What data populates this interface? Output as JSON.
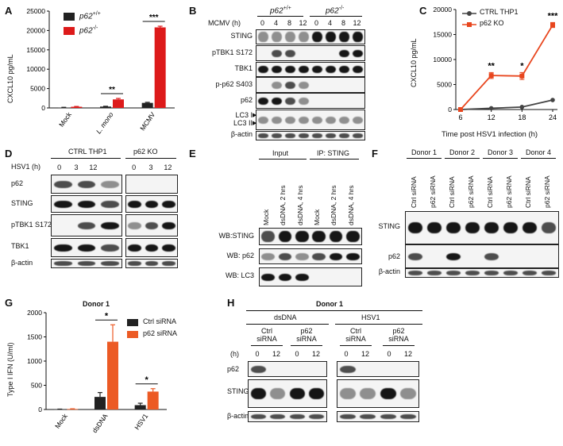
{
  "panels": {
    "A": {
      "letter": "A",
      "ylabel": "CXCL10 pg/mL",
      "legend": [
        {
          "label": "p62",
          "sup": "+/+",
          "color": "#222222"
        },
        {
          "label": "p62",
          "sup": "-/-",
          "color": "#dd1a1a"
        }
      ],
      "sig": [
        "**",
        "***"
      ]
    },
    "B": {
      "letter": "B",
      "geno1": "p62",
      "geno1_sup": "+/+",
      "geno2": "p62",
      "geno2_sup": "-/-",
      "time_label": "MCMV (h)",
      "times": [
        "0",
        "4",
        "8",
        "12",
        "0",
        "4",
        "8",
        "12"
      ],
      "rows": [
        "STING",
        "pTBK1 S172",
        "TBK1",
        "p-p62 S403",
        "p62",
        "LC3 I",
        "LC3 II",
        "β-actin"
      ]
    },
    "C": {
      "letter": "C",
      "legend": [
        "CTRL THP1",
        "p62 KO"
      ],
      "ylabel": "CXCL10 pg/mL",
      "xlabel": "Time post HSV1 infection (h)",
      "sig": [
        "**",
        "*",
        "***"
      ]
    },
    "D": {
      "letter": "D",
      "group1": "CTRL THP1",
      "group2": "p62 KO",
      "time_label": "HSV1 (h)",
      "times": [
        "0",
        "3",
        "12",
        "0",
        "3",
        "12"
      ],
      "rows": [
        "p62",
        "STING",
        "pTBK1 S172",
        "TBK1",
        "β-actin"
      ]
    },
    "E": {
      "letter": "E",
      "group1": "Input",
      "group2": "IP: STING",
      "lanes": [
        "Mock",
        "dsDNA, 2 hrs",
        "dsDNA, 4 hrs",
        "Mock",
        "dsDNA, 2 hrs",
        "dsDNA, 4 hrs"
      ],
      "rows": [
        "WB:STING",
        "WB: p62",
        "WB: LC3"
      ]
    },
    "F": {
      "letter": "F",
      "donors": [
        "Donor 1",
        "Donor 2",
        "Donor 3",
        "Donor 4"
      ],
      "lanes": [
        "Ctrl siRNA",
        "p62 siRNA",
        "Ctrl siRNA",
        "p62 siRNA",
        "Ctrl siRNA",
        "p62 siRNA",
        "Ctrl siRNA",
        "p62 siRNA"
      ],
      "rows": [
        "STING",
        "p62",
        "β-actin"
      ]
    },
    "G": {
      "letter": "G",
      "title": "Donor 1",
      "ylabel": "Type I IFN (U/ml)",
      "legend": [
        {
          "label": "Ctrl siRNA",
          "color": "#222222"
        },
        {
          "label": "p62 siRNA",
          "color": "#ec5a24"
        }
      ],
      "sig": [
        "*",
        "*"
      ]
    },
    "H": {
      "letter": "H",
      "title": "Donor 1",
      "treat1": "dsDNA",
      "treat2": "HSV1",
      "conds": [
        "Ctrl siRNA",
        "p62 siRNA",
        "Ctrl siRNA",
        "p62 siRNA"
      ],
      "time_label": "(h)",
      "times": [
        "0",
        "12",
        "0",
        "12",
        "0",
        "12",
        "0",
        "12"
      ],
      "rows": [
        "p62",
        "STING",
        "β-actin"
      ]
    }
  },
  "chart_data": [
    {
      "panel": "A",
      "type": "bar",
      "categories": [
        "Mock",
        "L. mono",
        "MCMV"
      ],
      "series": [
        {
          "name": "p62 +/+",
          "values": [
            100,
            350,
            1300
          ],
          "errors": [
            60,
            80,
            150
          ]
        },
        {
          "name": "p62 -/-",
          "values": [
            300,
            2200,
            20800
          ],
          "errors": [
            80,
            250,
            300
          ]
        }
      ],
      "ylim": [
        0,
        25000
      ],
      "yticks": [
        0,
        5000,
        10000,
        15000,
        20000,
        25000
      ],
      "ylabel": "CXCL10 pg/mL",
      "colors": [
        "#222222",
        "#dd1a1a"
      ]
    },
    {
      "panel": "C",
      "type": "line",
      "x": [
        6,
        12,
        18,
        24
      ],
      "series": [
        {
          "name": "CTRL THP1",
          "values": [
            0,
            250,
            500,
            1900
          ],
          "color": "#444444"
        },
        {
          "name": "p62 KO",
          "values": [
            0,
            6800,
            6700,
            16900
          ],
          "errors": [
            0,
            600,
            700,
            500
          ],
          "color": "#e8461e"
        }
      ],
      "ylim": [
        0,
        20000
      ],
      "yticks": [
        0,
        5000,
        10000,
        15000,
        20000
      ],
      "xlabel": "Time post HSV1 infection (h)",
      "ylabel": "CXCL10 pg/mL"
    },
    {
      "panel": "G",
      "type": "bar",
      "title": "Donor 1",
      "categories": [
        "Mock",
        "dsDNA",
        "HSV1"
      ],
      "series": [
        {
          "name": "Ctrl siRNA",
          "values": [
            5,
            260,
            90
          ],
          "errors": [
            3,
            90,
            40
          ]
        },
        {
          "name": "p62 siRNA",
          "values": [
            10,
            1400,
            370
          ],
          "errors": [
            5,
            350,
            60
          ]
        }
      ],
      "ylim": [
        0,
        2000
      ],
      "yticks": [
        0,
        500,
        1000,
        1500,
        2000
      ],
      "ylabel": "Type I IFN (U/ml)",
      "colors": [
        "#222222",
        "#ec5a24"
      ]
    }
  ]
}
